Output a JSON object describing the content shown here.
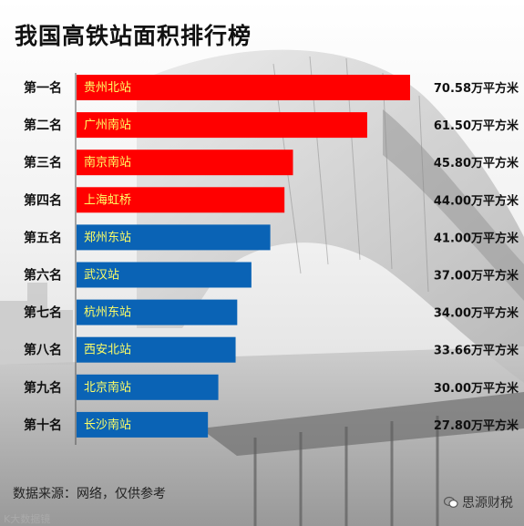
{
  "title": "我国高铁站面积排行榜",
  "source_note": "数据来源：网络，仅供参考",
  "watermark_right": "思源财税",
  "watermark_left": "K大数据镜",
  "colors": {
    "top4": "#ff0000",
    "rest": "#0a63b5",
    "bar_text": "#ffff66",
    "rank_text": "#111111",
    "value_text": "#111111"
  },
  "chart_data": {
    "type": "bar",
    "orientation": "horizontal",
    "title": "我国高铁站面积排行榜",
    "unit": "万平方米",
    "ranks": [
      "第一名",
      "第二名",
      "第三名",
      "第四名",
      "第五名",
      "第六名",
      "第七名",
      "第八名",
      "第九名",
      "第十名"
    ],
    "categories": [
      "贵州北站",
      "广州南站",
      "南京南站",
      "上海虹桥",
      "郑州东站",
      "武汉站",
      "杭州东站",
      "西安北站",
      "北京南站",
      "长沙南站"
    ],
    "values": [
      70.58,
      61.5,
      45.8,
      44.0,
      41.0,
      37.0,
      34.0,
      33.66,
      30.0,
      27.8
    ],
    "value_labels": [
      "70.58万平方米",
      "61.50万平方米",
      "45.80万平方米",
      "44.00万平方米",
      "41.00万平方米",
      "37.00万平方米",
      "34.00万平方米",
      "33.66万平方米",
      "30.00万平方米",
      "27.80万平方米"
    ],
    "bar_colors": [
      "#ff0000",
      "#ff0000",
      "#ff0000",
      "#ff0000",
      "#0a63b5",
      "#0a63b5",
      "#0a63b5",
      "#0a63b5",
      "#0a63b5",
      "#0a63b5"
    ],
    "xlim": [
      0,
      70.58
    ],
    "grid": false,
    "legend": "none"
  }
}
